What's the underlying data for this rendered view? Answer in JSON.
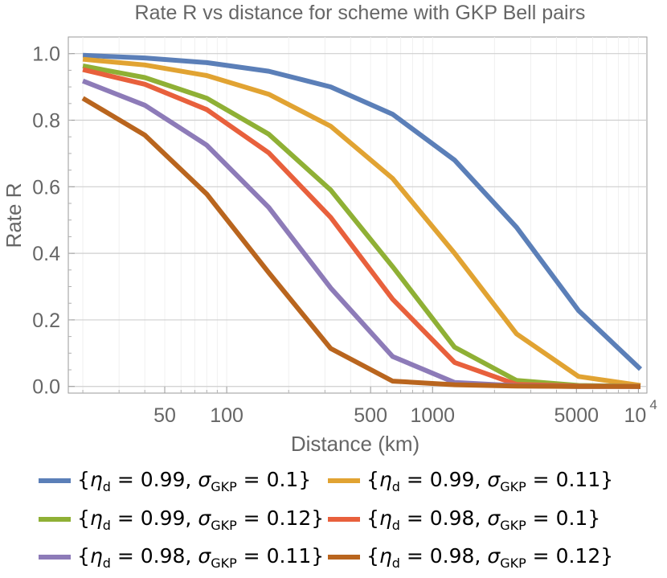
{
  "chart_data": {
    "type": "line",
    "title": "Rate R vs distance for scheme with GKP Bell pairs",
    "xlabel": "Distance (km)",
    "ylabel": "Rate R",
    "xscale": "log",
    "xlim": [
      17,
      11000
    ],
    "ylim": [
      -0.02,
      1.05
    ],
    "x_ticks": [
      {
        "value": 50,
        "label": "50"
      },
      {
        "value": 100,
        "label": "100"
      },
      {
        "value": 500,
        "label": "500"
      },
      {
        "value": 1000,
        "label": "1000"
      },
      {
        "value": 5000,
        "label": "5000"
      }
    ],
    "x_tick_last": {
      "value": 10000,
      "base": "10",
      "exp": "4"
    },
    "y_ticks": [
      {
        "value": 0.0,
        "label": "0.0"
      },
      {
        "value": 0.2,
        "label": "0.2"
      },
      {
        "value": 0.4,
        "label": "0.4"
      },
      {
        "value": 0.6,
        "label": "0.6"
      },
      {
        "value": 0.8,
        "label": "0.8"
      },
      {
        "value": 1.0,
        "label": "1.0"
      }
    ],
    "grid": "horizontal",
    "x": [
      20,
      40,
      80,
      160,
      320,
      640,
      1280,
      2560,
      5120,
      10240
    ],
    "series": [
      {
        "name": "{η_d = 0.99, σ_GKP = 0.1}",
        "eta": "0.99",
        "sigma": "0.1",
        "color": "#5b7fb8",
        "values": [
          0.995,
          0.987,
          0.973,
          0.947,
          0.9,
          0.818,
          0.68,
          0.478,
          0.228,
          0.052
        ]
      },
      {
        "name": "{η_d = 0.99, σ_GKP = 0.11}",
        "eta": "0.99",
        "sigma": "0.11",
        "color": "#e1a332",
        "values": [
          0.983,
          0.966,
          0.934,
          0.878,
          0.782,
          0.625,
          0.4,
          0.158,
          0.03,
          0.003
        ]
      },
      {
        "name": "{η_d = 0.99, σ_GKP = 0.12}",
        "eta": "0.99",
        "sigma": "0.12",
        "color": "#8fb035",
        "values": [
          0.963,
          0.928,
          0.866,
          0.758,
          0.59,
          0.36,
          0.118,
          0.018,
          0.003,
          0.0
        ]
      },
      {
        "name": "{η_d = 0.98, σ_GKP = 0.1}",
        "eta": "0.98",
        "sigma": "0.1",
        "color": "#e8603c",
        "values": [
          0.952,
          0.908,
          0.832,
          0.702,
          0.508,
          0.262,
          0.072,
          0.006,
          0.001,
          0.0
        ]
      },
      {
        "name": "{η_d = 0.98, σ_GKP = 0.11}",
        "eta": "0.98",
        "sigma": "0.11",
        "color": "#8d7bb8",
        "values": [
          0.918,
          0.845,
          0.725,
          0.538,
          0.296,
          0.09,
          0.012,
          0.002,
          0.0,
          0.0
        ]
      },
      {
        "name": "{η_d = 0.98, σ_GKP = 0.12}",
        "eta": "0.98",
        "sigma": "0.12",
        "color": "#b9651e",
        "values": [
          0.866,
          0.755,
          0.578,
          0.342,
          0.114,
          0.016,
          0.005,
          0.001,
          0.0,
          0.0
        ]
      }
    ]
  },
  "legend": {
    "open": "{",
    "close": "}",
    "eta_symbol": "η",
    "eta_sub": "d",
    "sigma_symbol": "σ",
    "sigma_sub": "GKP",
    "eq": " = ",
    "sep": ", "
  }
}
